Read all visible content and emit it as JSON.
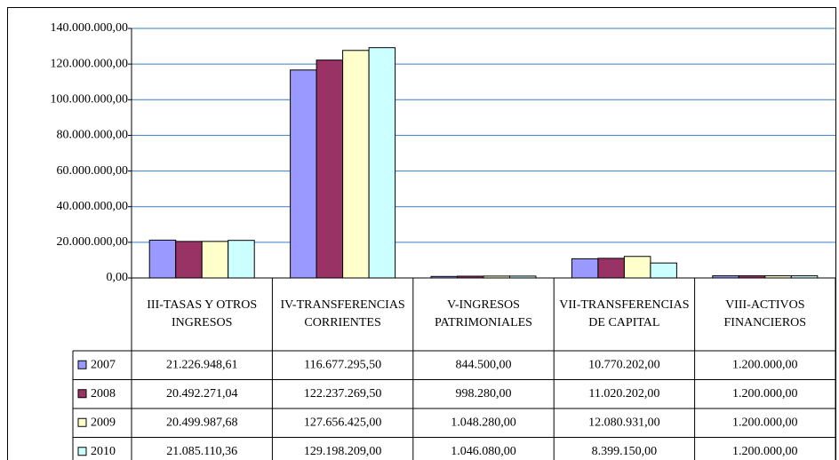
{
  "chart_data": {
    "type": "bar",
    "categories": [
      "III-TASAS Y OTROS INGRESOS",
      "IV-TRANSFERENCIAS CORRIENTES",
      "V-INGRESOS PATRIMONIALES",
      "VII-TRANSFERENCIAS DE CAPITAL",
      "VIII-ACTIVOS FINANCIEROS"
    ],
    "series": [
      {
        "name": "2007",
        "color": "#9999ff",
        "values": [
          21226948.61,
          116677295.5,
          844500.0,
          10770202.0,
          1200000.0
        ],
        "value_labels": [
          "21.226.948,61",
          "116.677.295,50",
          "844.500,00",
          "10.770.202,00",
          "1.200.000,00"
        ]
      },
      {
        "name": "2008",
        "color": "#993366",
        "values": [
          20492271.04,
          122237269.5,
          998280.0,
          11020202.0,
          1200000.0
        ],
        "value_labels": [
          "20.492.271,04",
          "122.237.269,50",
          "998.280,00",
          "11.020.202,00",
          "1.200.000,00"
        ]
      },
      {
        "name": "2009",
        "color": "#ffffcc",
        "values": [
          20499987.68,
          127656425.0,
          1048280.0,
          12080931.0,
          1200000.0
        ],
        "value_labels": [
          "20.499.987,68",
          "127.656.425,00",
          "1.048.280,00",
          "12.080.931,00",
          "1.200.000,00"
        ]
      },
      {
        "name": "2010",
        "color": "#ccffff",
        "values": [
          21085110.36,
          129198209.0,
          1046080.0,
          8399150.0,
          1200000.0
        ],
        "value_labels": [
          "21.085.110,36",
          "129.198.209,00",
          "1.046.080,00",
          "8.399.150,00",
          "1.200.000,00"
        ]
      }
    ],
    "ylim": [
      0,
      140000000
    ],
    "yticks": [
      {
        "value": 0,
        "label": "0,00"
      },
      {
        "value": 20000000,
        "label": "20.000.000,00"
      },
      {
        "value": 40000000,
        "label": "40.000.000,00"
      },
      {
        "value": 60000000,
        "label": "60.000.000,00"
      },
      {
        "value": 80000000,
        "label": "80.000.000,00"
      },
      {
        "value": 100000000,
        "label": "100.000.000,00"
      },
      {
        "value": 120000000,
        "label": "120.000.000,00"
      },
      {
        "value": 140000000,
        "label": "140.000.000,00"
      }
    ],
    "grid": true
  }
}
